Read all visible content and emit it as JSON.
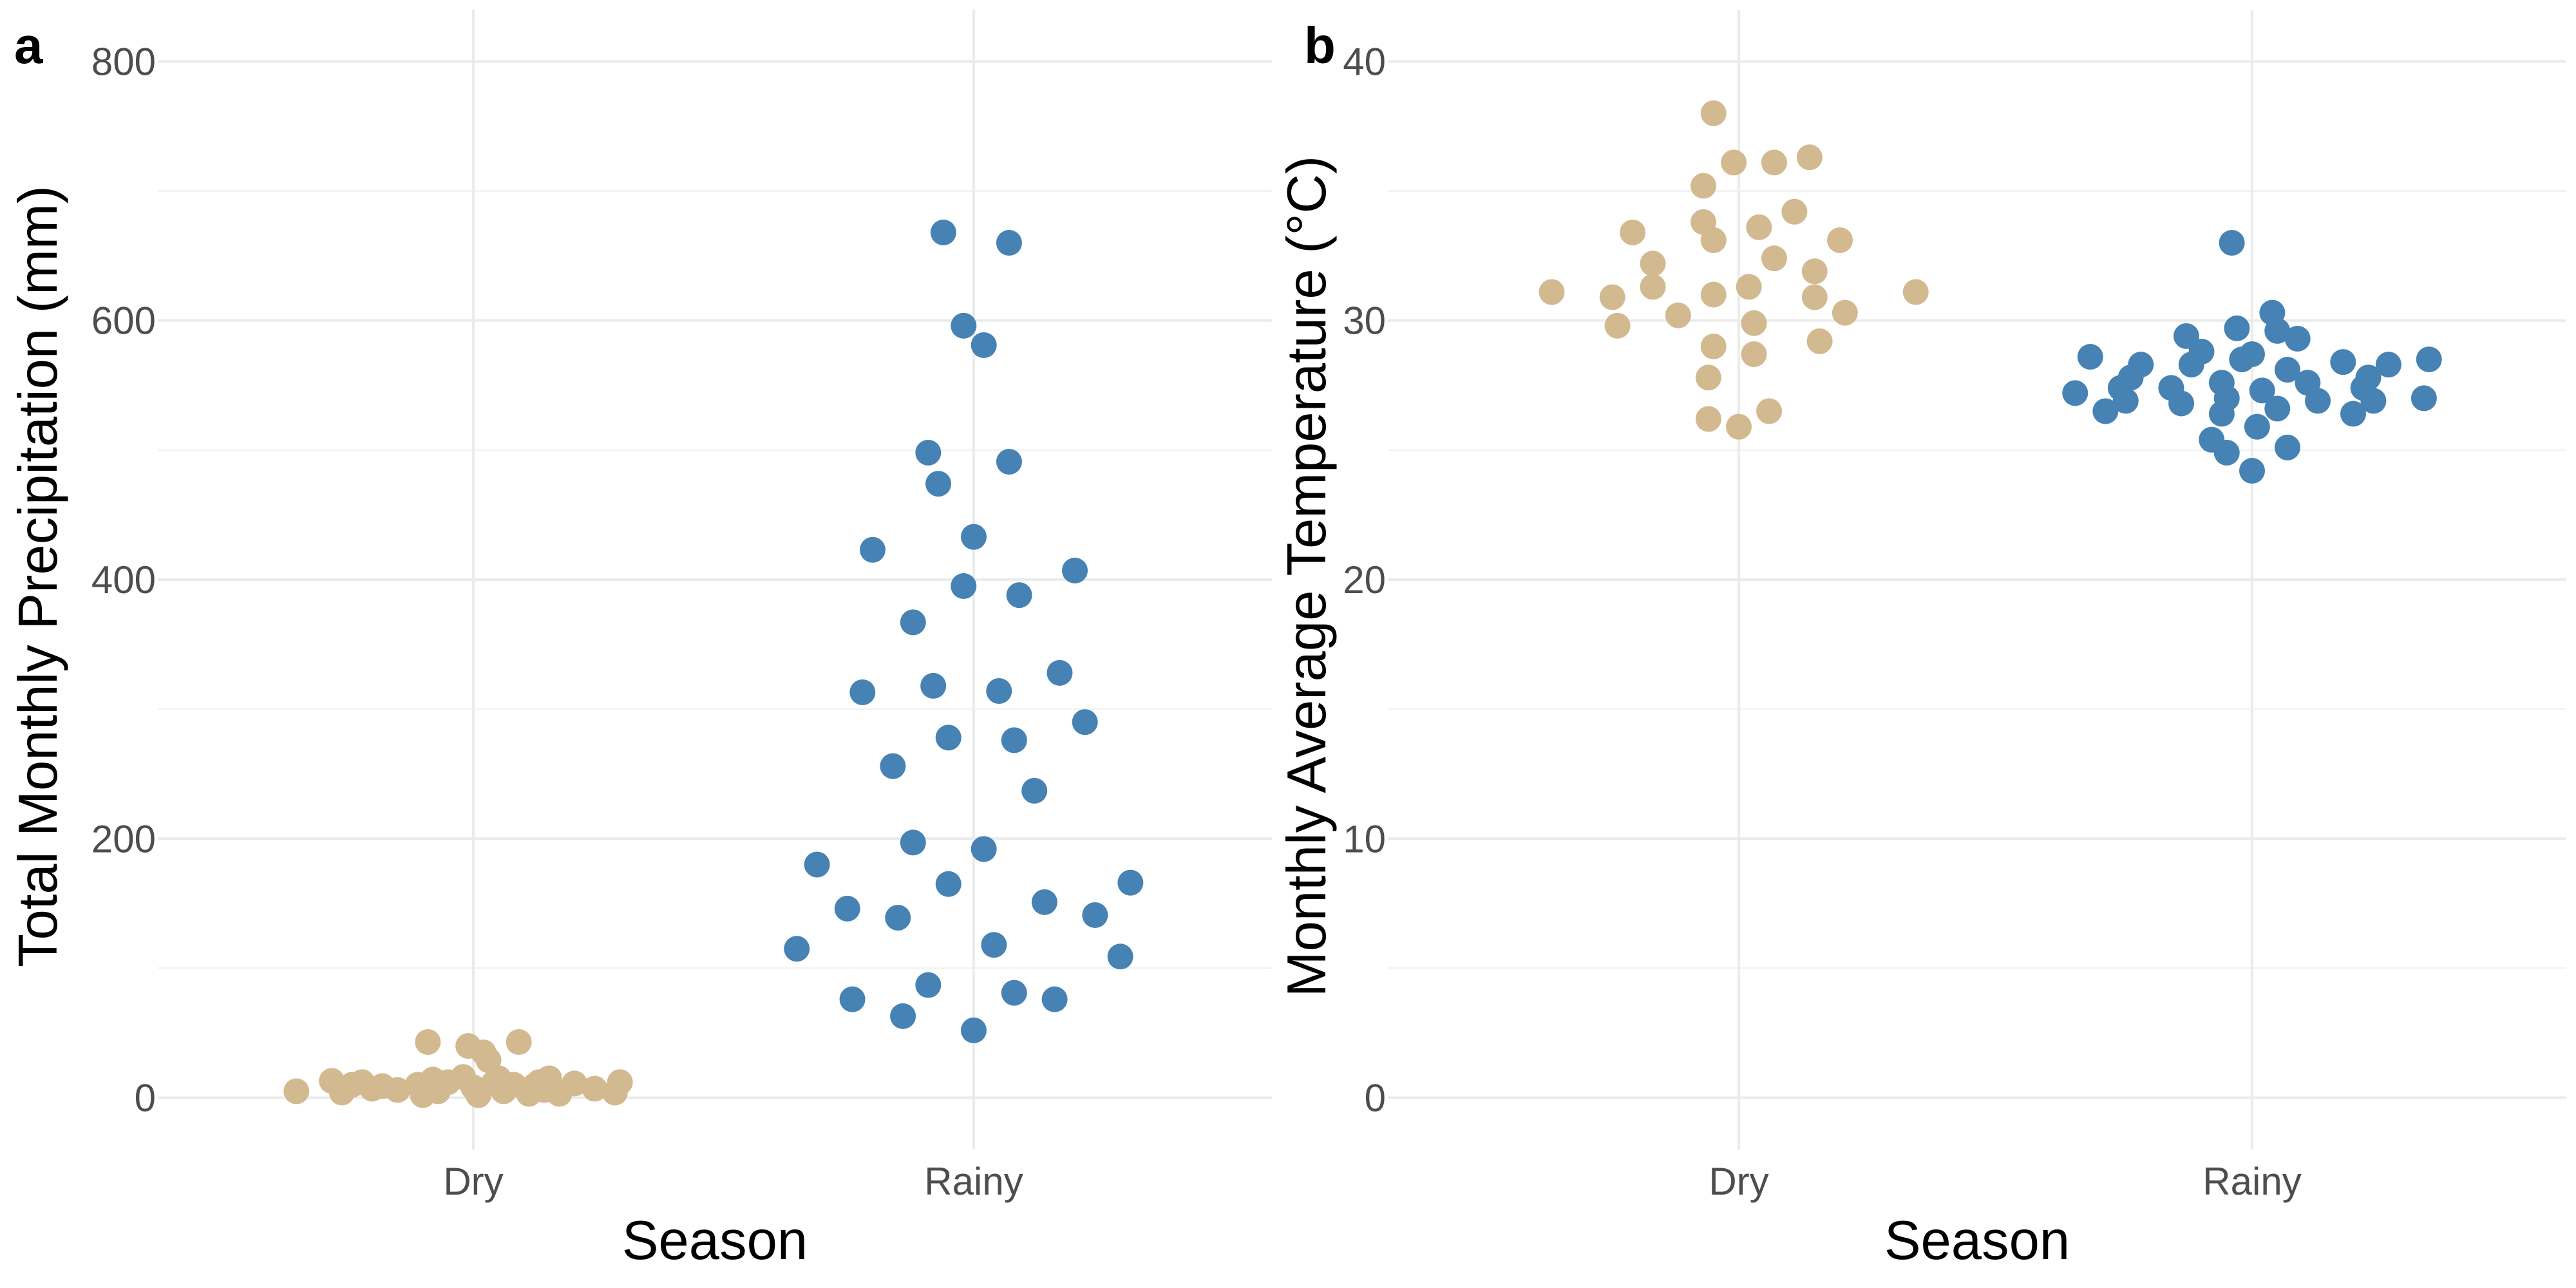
{
  "chart_data": [
    {
      "panel_label": "a",
      "type": "scatter",
      "subtype": "beeswarm",
      "xlabel": "Season",
      "ylabel": "Total Monthly Precipitation (mm)",
      "categories": [
        "Dry",
        "Rainy"
      ],
      "ylim": [
        -40,
        840
      ],
      "yticks": [
        0,
        200,
        400,
        600,
        800
      ],
      "grid": true,
      "colors": {
        "Dry": "#D2B990",
        "Rainy": "#4682B4"
      },
      "points": {
        "Dry": [
          {
            "offset": -0.35,
            "y": 5
          },
          {
            "offset": -0.28,
            "y": 13
          },
          {
            "offset": -0.26,
            "y": 4
          },
          {
            "offset": -0.24,
            "y": 10
          },
          {
            "offset": -0.22,
            "y": 12
          },
          {
            "offset": -0.2,
            "y": 7
          },
          {
            "offset": -0.18,
            "y": 9
          },
          {
            "offset": -0.15,
            "y": 6
          },
          {
            "offset": -0.11,
            "y": 10
          },
          {
            "offset": -0.1,
            "y": 2
          },
          {
            "offset": -0.09,
            "y": 43
          },
          {
            "offset": -0.08,
            "y": 14
          },
          {
            "offset": -0.07,
            "y": 5
          },
          {
            "offset": -0.05,
            "y": 12
          },
          {
            "offset": -0.02,
            "y": 16
          },
          {
            "offset": 0.0,
            "y": 8
          },
          {
            "offset": -0.01,
            "y": 40
          },
          {
            "offset": 0.01,
            "y": 2
          },
          {
            "offset": 0.02,
            "y": 35
          },
          {
            "offset": 0.03,
            "y": 29
          },
          {
            "offset": 0.04,
            "y": 11
          },
          {
            "offset": 0.05,
            "y": 15
          },
          {
            "offset": 0.06,
            "y": 5
          },
          {
            "offset": 0.08,
            "y": 10
          },
          {
            "offset": 0.09,
            "y": 43
          },
          {
            "offset": 0.11,
            "y": 3
          },
          {
            "offset": 0.12,
            "y": 9
          },
          {
            "offset": 0.13,
            "y": 12
          },
          {
            "offset": 0.14,
            "y": 6
          },
          {
            "offset": 0.15,
            "y": 15
          },
          {
            "offset": 0.17,
            "y": 3
          },
          {
            "offset": 0.2,
            "y": 11
          },
          {
            "offset": 0.24,
            "y": 7
          },
          {
            "offset": 0.28,
            "y": 4
          },
          {
            "offset": 0.29,
            "y": 12
          }
        ],
        "Rainy": [
          {
            "offset": -0.35,
            "y": 115
          },
          {
            "offset": -0.31,
            "y": 180
          },
          {
            "offset": -0.25,
            "y": 146
          },
          {
            "offset": -0.24,
            "y": 76
          },
          {
            "offset": -0.22,
            "y": 313
          },
          {
            "offset": -0.2,
            "y": 423
          },
          {
            "offset": -0.16,
            "y": 256
          },
          {
            "offset": -0.15,
            "y": 139
          },
          {
            "offset": -0.14,
            "y": 63
          },
          {
            "offset": -0.12,
            "y": 197
          },
          {
            "offset": -0.12,
            "y": 367
          },
          {
            "offset": -0.09,
            "y": 87
          },
          {
            "offset": -0.09,
            "y": 498
          },
          {
            "offset": -0.08,
            "y": 318
          },
          {
            "offset": -0.07,
            "y": 474
          },
          {
            "offset": -0.06,
            "y": 668
          },
          {
            "offset": -0.05,
            "y": 278
          },
          {
            "offset": -0.05,
            "y": 165
          },
          {
            "offset": -0.02,
            "y": 596
          },
          {
            "offset": -0.02,
            "y": 395
          },
          {
            "offset": 0.0,
            "y": 52
          },
          {
            "offset": 0.0,
            "y": 433
          },
          {
            "offset": 0.02,
            "y": 192
          },
          {
            "offset": 0.02,
            "y": 581
          },
          {
            "offset": 0.04,
            "y": 118
          },
          {
            "offset": 0.05,
            "y": 314
          },
          {
            "offset": 0.07,
            "y": 491
          },
          {
            "offset": 0.07,
            "y": 660
          },
          {
            "offset": 0.08,
            "y": 276
          },
          {
            "offset": 0.08,
            "y": 81
          },
          {
            "offset": 0.09,
            "y": 388
          },
          {
            "offset": 0.12,
            "y": 237
          },
          {
            "offset": 0.14,
            "y": 151
          },
          {
            "offset": 0.16,
            "y": 76
          },
          {
            "offset": 0.17,
            "y": 328
          },
          {
            "offset": 0.2,
            "y": 407
          },
          {
            "offset": 0.22,
            "y": 290
          },
          {
            "offset": 0.24,
            "y": 141
          },
          {
            "offset": 0.29,
            "y": 109
          },
          {
            "offset": 0.31,
            "y": 166
          }
        ]
      }
    },
    {
      "panel_label": "b",
      "type": "scatter",
      "subtype": "beeswarm",
      "xlabel": "Season",
      "ylabel": "Monthly Average Temperature (°C)",
      "categories": [
        "Dry",
        "Rainy"
      ],
      "ylim": [
        -2,
        42
      ],
      "yticks": [
        0,
        10,
        20,
        30,
        40
      ],
      "grid": true,
      "colors": {
        "Dry": "#D2B990",
        "Rainy": "#4682B4"
      },
      "points": {
        "Dry": [
          {
            "offset": -0.37,
            "y": 31.1
          },
          {
            "offset": -0.25,
            "y": 30.9
          },
          {
            "offset": -0.24,
            "y": 29.8
          },
          {
            "offset": -0.21,
            "y": 33.4
          },
          {
            "offset": -0.17,
            "y": 32.2
          },
          {
            "offset": -0.17,
            "y": 31.3
          },
          {
            "offset": -0.12,
            "y": 30.2
          },
          {
            "offset": -0.07,
            "y": 33.8
          },
          {
            "offset": -0.07,
            "y": 35.2
          },
          {
            "offset": -0.06,
            "y": 26.2
          },
          {
            "offset": -0.06,
            "y": 27.8
          },
          {
            "offset": -0.05,
            "y": 33.1
          },
          {
            "offset": -0.05,
            "y": 31.0
          },
          {
            "offset": -0.05,
            "y": 29.0
          },
          {
            "offset": -0.05,
            "y": 38.0
          },
          {
            "offset": -0.01,
            "y": 36.1
          },
          {
            "offset": 0.0,
            "y": 25.9
          },
          {
            "offset": 0.02,
            "y": 31.3
          },
          {
            "offset": 0.03,
            "y": 28.7
          },
          {
            "offset": 0.03,
            "y": 29.9
          },
          {
            "offset": 0.04,
            "y": 33.6
          },
          {
            "offset": 0.06,
            "y": 26.5
          },
          {
            "offset": 0.07,
            "y": 36.1
          },
          {
            "offset": 0.07,
            "y": 32.4
          },
          {
            "offset": 0.11,
            "y": 34.2
          },
          {
            "offset": 0.14,
            "y": 36.3
          },
          {
            "offset": 0.15,
            "y": 31.9
          },
          {
            "offset": 0.15,
            "y": 30.9
          },
          {
            "offset": 0.16,
            "y": 29.2
          },
          {
            "offset": 0.2,
            "y": 33.1
          },
          {
            "offset": 0.21,
            "y": 30.3
          },
          {
            "offset": 0.35,
            "y": 31.1
          }
        ],
        "Rainy": [
          {
            "offset": -0.35,
            "y": 27.2
          },
          {
            "offset": -0.32,
            "y": 28.6
          },
          {
            "offset": -0.29,
            "y": 26.5
          },
          {
            "offset": -0.26,
            "y": 27.4
          },
          {
            "offset": -0.25,
            "y": 26.9
          },
          {
            "offset": -0.24,
            "y": 27.8
          },
          {
            "offset": -0.22,
            "y": 28.3
          },
          {
            "offset": -0.16,
            "y": 27.4
          },
          {
            "offset": -0.14,
            "y": 26.8
          },
          {
            "offset": -0.13,
            "y": 29.4
          },
          {
            "offset": -0.12,
            "y": 28.3
          },
          {
            "offset": -0.1,
            "y": 28.8
          },
          {
            "offset": -0.08,
            "y": 25.4
          },
          {
            "offset": -0.06,
            "y": 26.4
          },
          {
            "offset": -0.06,
            "y": 27.6
          },
          {
            "offset": -0.05,
            "y": 24.9
          },
          {
            "offset": -0.05,
            "y": 27.0
          },
          {
            "offset": -0.04,
            "y": 33.0
          },
          {
            "offset": -0.03,
            "y": 29.7
          },
          {
            "offset": -0.02,
            "y": 28.5
          },
          {
            "offset": 0.0,
            "y": 24.2
          },
          {
            "offset": 0.0,
            "y": 28.7
          },
          {
            "offset": 0.01,
            "y": 25.9
          },
          {
            "offset": 0.02,
            "y": 27.3
          },
          {
            "offset": 0.04,
            "y": 30.3
          },
          {
            "offset": 0.05,
            "y": 29.6
          },
          {
            "offset": 0.05,
            "y": 26.6
          },
          {
            "offset": 0.07,
            "y": 25.1
          },
          {
            "offset": 0.07,
            "y": 28.1
          },
          {
            "offset": 0.09,
            "y": 29.3
          },
          {
            "offset": 0.11,
            "y": 27.6
          },
          {
            "offset": 0.13,
            "y": 26.9
          },
          {
            "offset": 0.18,
            "y": 28.4
          },
          {
            "offset": 0.2,
            "y": 26.4
          },
          {
            "offset": 0.22,
            "y": 27.4
          },
          {
            "offset": 0.23,
            "y": 27.8
          },
          {
            "offset": 0.24,
            "y": 26.9
          },
          {
            "offset": 0.27,
            "y": 28.3
          },
          {
            "offset": 0.34,
            "y": 27.0
          },
          {
            "offset": 0.35,
            "y": 28.5
          }
        ]
      }
    }
  ]
}
